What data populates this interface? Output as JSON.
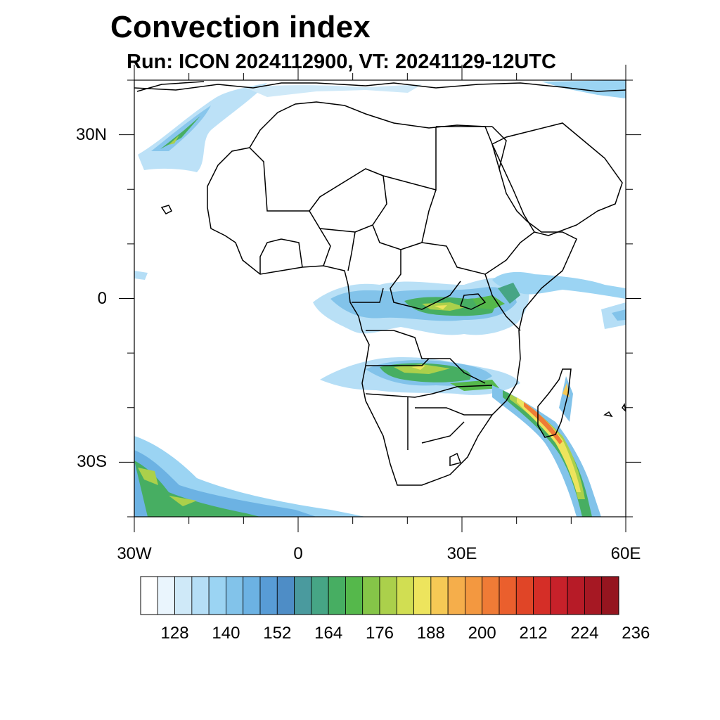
{
  "title": "Convection index",
  "subtitle": "Run: ICON 2024112900,  VT: 20241129-12UTC",
  "map": {
    "lon_range": [
      -30,
      60
    ],
    "lat_range": [
      -40,
      40
    ],
    "lat_tick_labels": [
      {
        "lat": 30,
        "label": "30N"
      },
      {
        "lat": 0,
        "label": "0"
      },
      {
        "lat": -30,
        "label": "30S"
      }
    ],
    "lon_tick_labels": [
      {
        "lon": -30,
        "label": "30W"
      },
      {
        "lon": 0,
        "label": "0"
      },
      {
        "lon": 30,
        "label": "30E"
      },
      {
        "lon": 60,
        "label": "60E"
      }
    ],
    "features": [
      "country-borders",
      "coastlines",
      "convection-index-shading"
    ]
  },
  "colorbar": {
    "colors": [
      "#ffffff",
      "#eaf5fd",
      "#cfe9f8",
      "#b5def6",
      "#9bd4f3",
      "#82c3ea",
      "#6cb2e3",
      "#589cd6",
      "#4e8dc6",
      "#4a9a9e",
      "#46a585",
      "#47ae62",
      "#55b84b",
      "#85c548",
      "#abd04b",
      "#d1de52",
      "#ede45d",
      "#f6c955",
      "#f5ae4b",
      "#f39840",
      "#ef7b36",
      "#ea5f2d",
      "#e04527",
      "#d52e27",
      "#c7212a",
      "#b71b27",
      "#a61823",
      "#95151f"
    ],
    "tick_labels": [
      "128",
      "140",
      "152",
      "164",
      "176",
      "188",
      "200",
      "212",
      "224",
      "236"
    ]
  }
}
